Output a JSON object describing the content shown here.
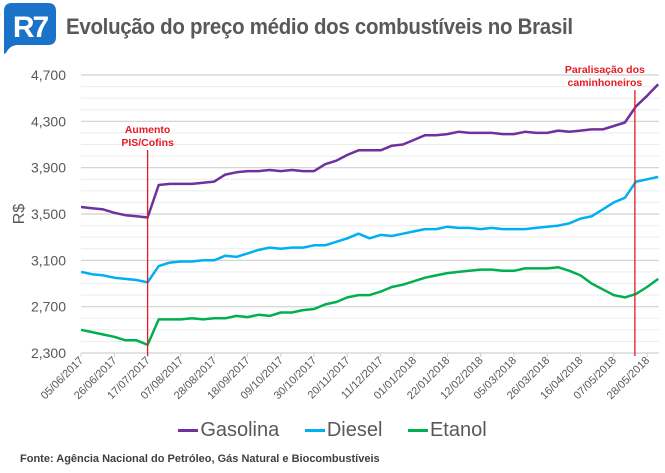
{
  "header": {
    "logo_text": "R7",
    "logo_color": "#1a73c9",
    "title": "Evolução do preço médio dos combustíveis no Brasil"
  },
  "source": "Fonte: Agência Nacional do Petróleo, Gás Natural e Biocombustíveis",
  "chart_data": {
    "type": "line",
    "title": "Evolução do preço médio dos combustíveis no Brasil",
    "xlabel": "",
    "ylabel": "R$",
    "ylim": [
      2300,
      4700
    ],
    "yticks": [
      "2,300",
      "2,700",
      "3,100",
      "3,500",
      "3,900",
      "4,300",
      "4,700"
    ],
    "ytick_values": [
      2300,
      2700,
      3100,
      3500,
      3900,
      4300,
      4700
    ],
    "minor_grid_step": 100,
    "grid": true,
    "legend_position": "bottom",
    "xtick_labels": [
      "05/06/2017",
      "26/06/2017",
      "17/07/2017",
      "07/08/2017",
      "28/08/2017",
      "18/09/2017",
      "09/10/2017",
      "30/10/2017",
      "20/11/2017",
      "11/12/2017",
      "01/01/2018",
      "22/01/2018",
      "12/02/2018",
      "05/03/2018",
      "26/03/2018",
      "16/04/2018",
      "07/05/2018",
      "28/05/2018"
    ],
    "xtick_every_n_points": 3,
    "n_points": 53,
    "series": [
      {
        "name": "Gasolina",
        "color": "#7030a0",
        "values": [
          3560,
          3550,
          3540,
          3510,
          3490,
          3480,
          3470,
          3750,
          3760,
          3760,
          3760,
          3770,
          3780,
          3840,
          3860,
          3870,
          3870,
          3880,
          3870,
          3880,
          3870,
          3870,
          3930,
          3960,
          4010,
          4050,
          4050,
          4050,
          4090,
          4100,
          4140,
          4180,
          4180,
          4190,
          4210,
          4200,
          4200,
          4200,
          4190,
          4190,
          4210,
          4200,
          4200,
          4220,
          4210,
          4220,
          4230,
          4230,
          4260,
          4290,
          4430,
          4520,
          4620
        ]
      },
      {
        "name": "Diesel",
        "color": "#00b0f0",
        "values": [
          3000,
          2980,
          2970,
          2950,
          2940,
          2930,
          2910,
          3050,
          3080,
          3090,
          3090,
          3100,
          3100,
          3140,
          3130,
          3160,
          3190,
          3210,
          3200,
          3210,
          3210,
          3230,
          3230,
          3260,
          3290,
          3330,
          3290,
          3320,
          3310,
          3330,
          3350,
          3370,
          3370,
          3390,
          3380,
          3380,
          3370,
          3380,
          3370,
          3370,
          3370,
          3380,
          3390,
          3400,
          3420,
          3460,
          3480,
          3540,
          3600,
          3640,
          3780,
          3800,
          3820
        ]
      },
      {
        "name": "Etanol",
        "color": "#00b050",
        "values": [
          2500,
          2480,
          2460,
          2440,
          2410,
          2410,
          2370,
          2590,
          2590,
          2590,
          2600,
          2590,
          2600,
          2600,
          2620,
          2610,
          2630,
          2620,
          2650,
          2650,
          2670,
          2680,
          2720,
          2740,
          2780,
          2800,
          2800,
          2830,
          2870,
          2890,
          2920,
          2950,
          2970,
          2990,
          3000,
          3010,
          3020,
          3020,
          3010,
          3010,
          3030,
          3030,
          3030,
          3040,
          3010,
          2970,
          2900,
          2850,
          2800,
          2780,
          2810,
          2870,
          2940
        ]
      }
    ],
    "annotations": [
      {
        "label_line1": "Aumento",
        "label_line2": "PIS/Cofins",
        "at_point_index": 6,
        "color": "#e31b23"
      },
      {
        "label_line1": "Paralisação dos",
        "label_line2": "caminhoneiros",
        "at_point_index": 49.9,
        "color": "#e31b23"
      }
    ]
  }
}
